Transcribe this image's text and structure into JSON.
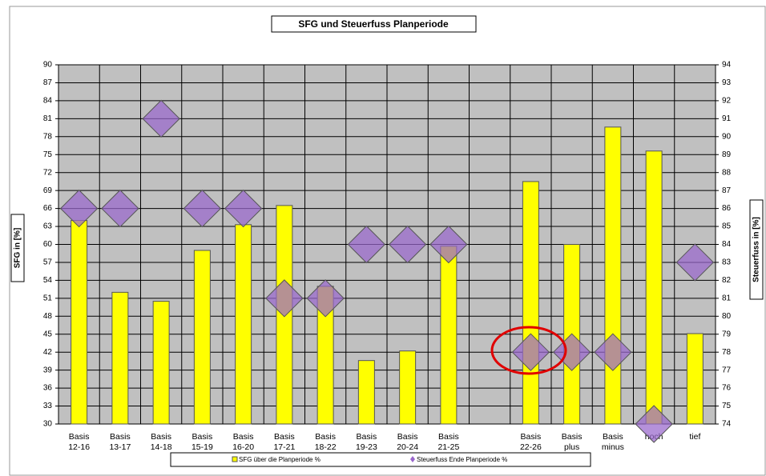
{
  "chart_data": {
    "type": "bar_scatter",
    "title": "SFG und Steuerfuss Planperiode",
    "ylabel": "SFG in [%]",
    "y2label": "Steuerfuss in [%]",
    "categories": [
      [
        "Basis",
        "12-16"
      ],
      [
        "Basis",
        "13-17"
      ],
      [
        "Basis",
        "14-18"
      ],
      [
        "Basis",
        "15-19"
      ],
      [
        "Basis",
        "16-20"
      ],
      [
        "Basis",
        "17-21"
      ],
      [
        "Basis",
        "18-22"
      ],
      [
        "Basis",
        "19-23"
      ],
      [
        "Basis",
        "20-24"
      ],
      [
        "Basis",
        "21-25"
      ],
      null,
      [
        "Basis",
        "22-26"
      ],
      [
        "Basis",
        "plus"
      ],
      [
        "Basis",
        "minus"
      ],
      [
        "hoch"
      ],
      [
        "tief"
      ]
    ],
    "series": [
      {
        "name": "SFG über die Planperiode %",
        "kind": "bar",
        "color": "#ffff00",
        "values": [
          64,
          52,
          50.5,
          59,
          63.3,
          66.5,
          53,
          40.6,
          42.2,
          59.7,
          null,
          70.5,
          60,
          79.6,
          75.6,
          45.1
        ]
      },
      {
        "name": "Steuerfuss Ende Planperiode %",
        "kind": "diamond",
        "axis": "y2",
        "color": "#9966cc",
        "values": [
          86,
          86,
          91,
          86,
          86,
          81,
          81,
          84,
          84,
          84,
          null,
          78,
          78,
          78,
          74,
          83
        ]
      }
    ],
    "ylim": [
      30,
      90
    ],
    "yticks": [
      30,
      33,
      36,
      39,
      42,
      45,
      48,
      51,
      54,
      57,
      60,
      63,
      66,
      69,
      72,
      75,
      78,
      81,
      84,
      87,
      90
    ],
    "y2lim": [
      74,
      94
    ],
    "y2ticks": [
      74,
      75,
      76,
      77,
      78,
      79,
      80,
      81,
      82,
      83,
      84,
      85,
      86,
      87,
      88,
      89,
      90,
      91,
      92,
      93,
      94
    ],
    "grid": true
  }
}
